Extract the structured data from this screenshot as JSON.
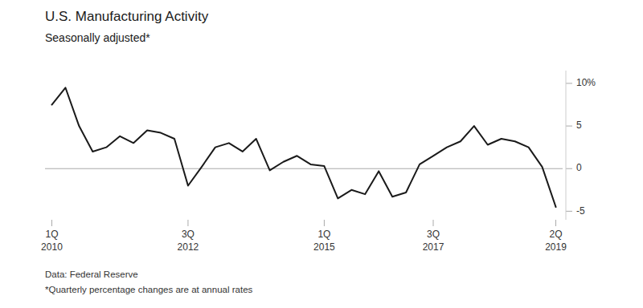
{
  "chart_data": {
    "type": "line",
    "title": "U.S. Manufacturing Activity",
    "subtitle": "Seasonally adjusted*",
    "annotations": [
      "Data: Federal Reserve",
      "*Quarterly percentage changes are at annual rates"
    ],
    "color": "#1a1a1a",
    "categories": [
      "1Q\n2010",
      null,
      null,
      null,
      null,
      null,
      null,
      null,
      null,
      null,
      "3Q\n2012",
      null,
      null,
      null,
      null,
      null,
      null,
      null,
      null,
      null,
      "1Q\n2015",
      null,
      null,
      null,
      null,
      null,
      null,
      null,
      "3Q\n2017",
      null,
      null,
      null,
      null,
      null,
      null,
      null,
      null,
      "2Q\n2019"
    ],
    "values": [
      7.5,
      9.5,
      5.0,
      2.0,
      2.5,
      3.8,
      3.0,
      4.5,
      4.2,
      3.5,
      -2.0,
      0.2,
      2.5,
      3.0,
      2.0,
      3.5,
      -0.2,
      0.8,
      1.5,
      0.5,
      0.3,
      -3.5,
      -2.5,
      -3.0,
      -0.3,
      -3.3,
      -2.8,
      0.5,
      1.5,
      2.5,
      3.2,
      5.0,
      2.8,
      3.5,
      3.2,
      2.5,
      0.2,
      -4.5
    ],
    "ylim": [
      -6.0,
      11.5
    ],
    "yticks": [
      -5,
      0,
      5,
      {
        "value": 10,
        "label": "10%"
      }
    ],
    "grid": false
  }
}
